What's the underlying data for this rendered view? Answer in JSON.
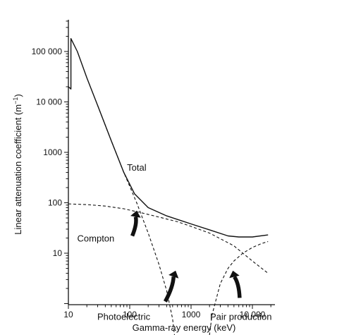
{
  "chart_data": {
    "type": "line",
    "title": "",
    "xlabel": "Gamma-ray energy (keV)",
    "ylabel_main": "Linear attenuation coefficient (m",
    "ylabel_sup": "−1",
    "ylabel_close": ")",
    "xscale": "log",
    "yscale": "log",
    "xlim": [
      10,
      20000
    ],
    "ylim": [
      0.1,
      1000000
    ],
    "grid": false,
    "xticks": [
      {
        "value": 10,
        "label": "10"
      },
      {
        "value": 100,
        "label": "100"
      },
      {
        "value": 1000,
        "label": "1000"
      },
      {
        "value": 10000,
        "label": "10 000"
      }
    ],
    "yticks": [
      {
        "value": 10,
        "label": "10"
      },
      {
        "value": 100,
        "label": "100"
      },
      {
        "value": 1000,
        "label": "1000"
      },
      {
        "value": 10000,
        "label": "10 000"
      },
      {
        "value": 100000,
        "label": "100 000"
      }
    ],
    "series": [
      {
        "key": "total",
        "style": "solid",
        "x": [
          10,
          11,
          11,
          14,
          20,
          30,
          50,
          80,
          120,
          200,
          400,
          1000,
          2000,
          4000,
          6000,
          10000,
          18000
        ],
        "y": [
          20000,
          18000,
          180000,
          100000,
          30000,
          8500,
          1700,
          400,
          150,
          80,
          55,
          38,
          29,
          22,
          21,
          21,
          23
        ]
      },
      {
        "key": "compton",
        "style": "dashed",
        "x": [
          10,
          20,
          40,
          80,
          150,
          300,
          600,
          1000,
          2000,
          5000,
          10000,
          18000
        ],
        "y": [
          95,
          92,
          86,
          76,
          64,
          52,
          42,
          34,
          25,
          14,
          7,
          4
        ]
      },
      {
        "key": "photoelectric",
        "style": "dashed",
        "x": [
          30,
          50,
          80,
          130,
          200,
          300,
          400,
          500,
          560
        ],
        "y": [
          8500,
          1700,
          400,
          100,
          25,
          6,
          1.8,
          0.5,
          0.15
        ]
      },
      {
        "key": "pair-production",
        "style": "dashed",
        "x": [
          1900,
          2200,
          3000,
          4000,
          5000,
          7000,
          10000,
          14000,
          18000
        ],
        "y": [
          0.15,
          0.6,
          2.5,
          5,
          7,
          10,
          13,
          15.5,
          17
        ]
      }
    ],
    "annotations": [
      {
        "key": "total",
        "text": "Total",
        "x": 130,
        "y": 430
      },
      {
        "key": "compton",
        "text": "Compton",
        "x": 28,
        "y": 17
      },
      {
        "key": "photoelectric",
        "text": "Photoelectric",
        "x": 80,
        "y": 0.48
      },
      {
        "key": "pair-production",
        "text": "Pair production",
        "x": 6500,
        "y": 0.48
      }
    ],
    "arrows": [
      {
        "key": "compton-arrow",
        "tail": [
          110,
          22
        ],
        "head": [
          130,
          70
        ]
      },
      {
        "key": "photoelectric-arrow",
        "tail": [
          380,
          1.1
        ],
        "head": [
          560,
          4.5
        ]
      },
      {
        "key": "pair-production-arrow",
        "tail": [
          6200,
          1.3
        ],
        "head": [
          4800,
          4.5
        ]
      }
    ]
  }
}
